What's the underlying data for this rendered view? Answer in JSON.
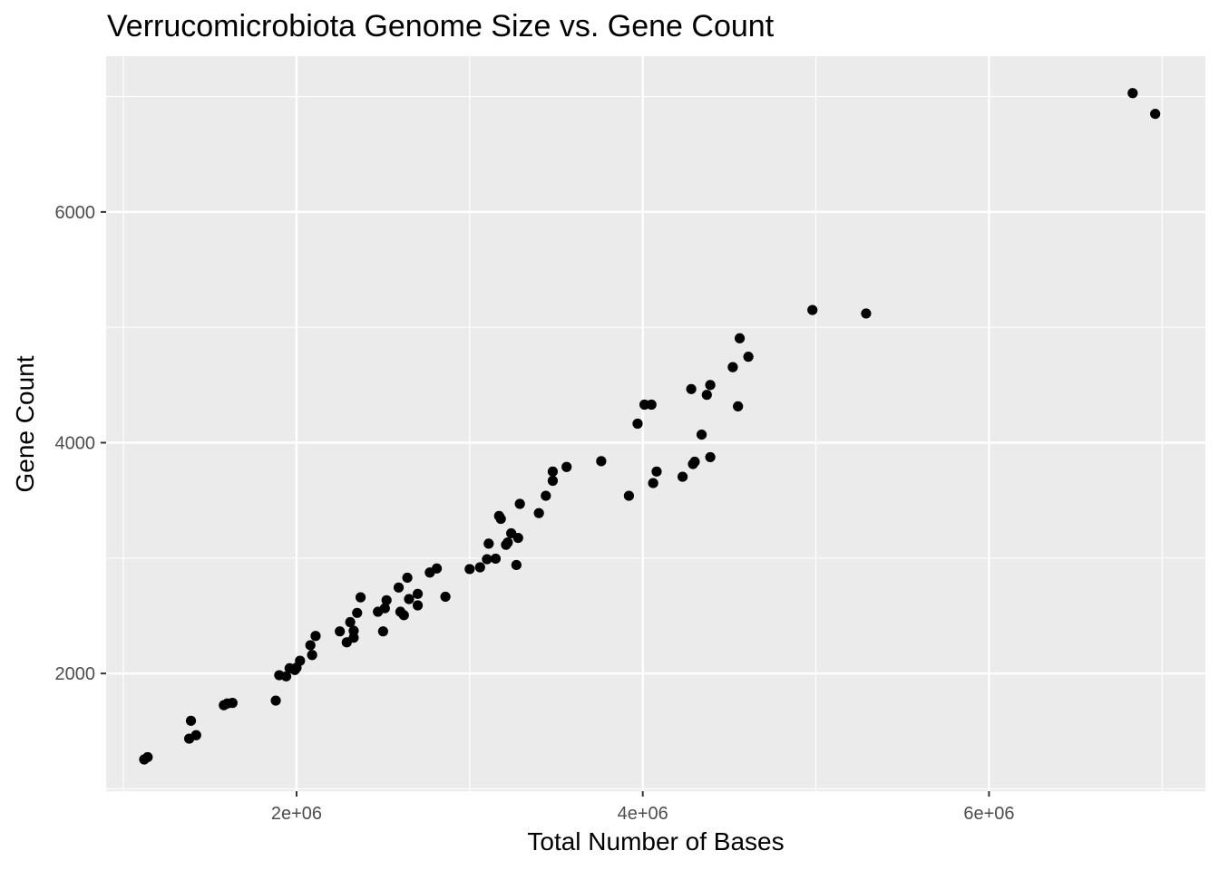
{
  "chart_data": {
    "type": "scatter",
    "title": "Verrucomicrobiota Genome Size vs. Gene Count",
    "xlabel": "Total Number of Bases",
    "ylabel": "Gene Count",
    "xlim": [
      900000,
      7250000
    ],
    "ylim": [
      980000000,
      0
    ],
    "x_ticks": [
      {
        "value": 2000000,
        "label": "2e+06"
      },
      {
        "value": 4000000,
        "label": "4e+06"
      },
      {
        "value": 6000000,
        "label": "6e+06"
      }
    ],
    "y_ticks": [
      {
        "value": 2000,
        "label": "2000"
      },
      {
        "value": 4000,
        "label": "4000"
      },
      {
        "value": 6000,
        "label": "6000"
      }
    ],
    "grid": true,
    "legend": "none",
    "colors": {
      "panel": "#ebebeb",
      "grid": "#ffffff",
      "point": "#000000"
    },
    "points": [
      [
        1120000,
        1255
      ],
      [
        1140000,
        1275
      ],
      [
        1380000,
        1435
      ],
      [
        1420000,
        1465
      ],
      [
        1390000,
        1590
      ],
      [
        1580000,
        1725
      ],
      [
        1600000,
        1740
      ],
      [
        1630000,
        1745
      ],
      [
        1880000,
        1765
      ],
      [
        1900000,
        1985
      ],
      [
        1940000,
        1975
      ],
      [
        1960000,
        2045
      ],
      [
        1990000,
        2030
      ],
      [
        2000000,
        2050
      ],
      [
        2020000,
        2110
      ],
      [
        2080000,
        2245
      ],
      [
        2090000,
        2160
      ],
      [
        2110000,
        2325
      ],
      [
        2250000,
        2365
      ],
      [
        2290000,
        2270
      ],
      [
        2310000,
        2445
      ],
      [
        2330000,
        2310
      ],
      [
        2330000,
        2370
      ],
      [
        2350000,
        2525
      ],
      [
        2370000,
        2660
      ],
      [
        2470000,
        2535
      ],
      [
        2500000,
        2365
      ],
      [
        2510000,
        2565
      ],
      [
        2520000,
        2635
      ],
      [
        2590000,
        2745
      ],
      [
        2600000,
        2535
      ],
      [
        2620000,
        2505
      ],
      [
        2640000,
        2830
      ],
      [
        2650000,
        2645
      ],
      [
        2700000,
        2690
      ],
      [
        2700000,
        2590
      ],
      [
        2770000,
        2875
      ],
      [
        2810000,
        2910
      ],
      [
        2860000,
        2665
      ],
      [
        3000000,
        2905
      ],
      [
        3060000,
        2920
      ],
      [
        3100000,
        2990
      ],
      [
        3110000,
        3125
      ],
      [
        3150000,
        2995
      ],
      [
        3170000,
        3365
      ],
      [
        3180000,
        3340
      ],
      [
        3210000,
        3115
      ],
      [
        3220000,
        3135
      ],
      [
        3240000,
        3215
      ],
      [
        3270000,
        2940
      ],
      [
        3280000,
        3175
      ],
      [
        3290000,
        3470
      ],
      [
        3400000,
        3390
      ],
      [
        3440000,
        3540
      ],
      [
        3480000,
        3670
      ],
      [
        3480000,
        3750
      ],
      [
        3560000,
        3790
      ],
      [
        3760000,
        3840
      ],
      [
        3920000,
        3540
      ],
      [
        3970000,
        4165
      ],
      [
        4010000,
        4330
      ],
      [
        4050000,
        4330
      ],
      [
        4060000,
        3650
      ],
      [
        4080000,
        3750
      ],
      [
        4230000,
        3705
      ],
      [
        4280000,
        4465
      ],
      [
        4290000,
        3815
      ],
      [
        4300000,
        3835
      ],
      [
        4340000,
        4070
      ],
      [
        4370000,
        4415
      ],
      [
        4390000,
        4500
      ],
      [
        4390000,
        3875
      ],
      [
        4520000,
        4655
      ],
      [
        4550000,
        4315
      ],
      [
        4560000,
        4905
      ],
      [
        4610000,
        4745
      ],
      [
        4980000,
        5150
      ],
      [
        5290000,
        5120
      ],
      [
        6830000,
        7030
      ],
      [
        6960000,
        6850
      ]
    ]
  }
}
